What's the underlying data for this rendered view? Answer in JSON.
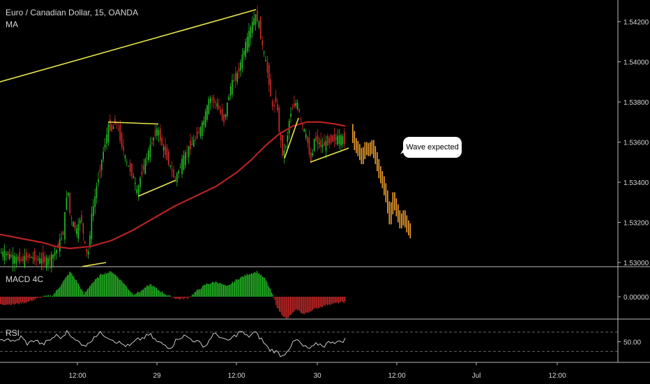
{
  "header": {
    "symbol": "Euro / Canadian Dollar, 15, OANDA",
    "indicator": "MA"
  },
  "panes": {
    "macd_label": "MACD 4C",
    "rsi_label": "RSI"
  },
  "annotation": {
    "text": "Wave expected"
  },
  "colors": {
    "background": "#000000",
    "up_candle": "#26c226",
    "down_candle": "#d42a2a",
    "ma_line": "#b52222",
    "trend_lines": "#e8e84a",
    "projection": "#f0a030",
    "rsi_line": "#dddddd",
    "grid": "#444444",
    "separator": "#bbbbbb"
  },
  "chart_data": [
    {
      "type": "candlestick",
      "pane": "price",
      "ylim": [
        1.53,
        1.5428
      ],
      "ytick_labels": [
        "1.54200",
        "1.54000",
        "1.53800",
        "1.53600",
        "1.53400",
        "1.53200",
        "1.53000"
      ],
      "ytick_values": [
        1.542,
        1.54,
        1.538,
        1.536,
        1.534,
        1.532,
        1.53
      ],
      "xtick_labels": [
        "12:00",
        "29",
        "12:00",
        "30",
        "12:00",
        "Jul",
        "12:00"
      ],
      "price_path": [
        [
          0,
          1.5305
        ],
        [
          10,
          1.5304
        ],
        [
          20,
          1.5302
        ],
        [
          30,
          1.5301
        ],
        [
          40,
          1.5303
        ],
        [
          50,
          1.5302
        ],
        [
          60,
          1.5301
        ],
        [
          70,
          1.5301
        ],
        [
          80,
          1.5306
        ],
        [
          90,
          1.5315
        ],
        [
          96,
          1.5339
        ],
        [
          100,
          1.5322
        ],
        [
          110,
          1.5315
        ],
        [
          115,
          1.5324
        ],
        [
          120,
          1.531
        ],
        [
          125,
          1.5302
        ],
        [
          130,
          1.5322
        ],
        [
          140,
          1.5342
        ],
        [
          150,
          1.536
        ],
        [
          155,
          1.5368
        ],
        [
          160,
          1.5366
        ],
        [
          165,
          1.5371
        ],
        [
          170,
          1.5364
        ],
        [
          180,
          1.535
        ],
        [
          190,
          1.5343
        ],
        [
          196,
          1.5334
        ],
        [
          200,
          1.5342
        ],
        [
          210,
          1.5353
        ],
        [
          220,
          1.5363
        ],
        [
          225,
          1.5367
        ],
        [
          230,
          1.536
        ],
        [
          240,
          1.5351
        ],
        [
          250,
          1.5341
        ],
        [
          260,
          1.535
        ],
        [
          270,
          1.5357
        ],
        [
          280,
          1.5362
        ],
        [
          290,
          1.5369
        ],
        [
          300,
          1.5382
        ],
        [
          310,
          1.5379
        ],
        [
          320,
          1.537
        ],
        [
          330,
          1.5388
        ],
        [
          340,
          1.5394
        ],
        [
          350,
          1.5407
        ],
        [
          360,
          1.5418
        ],
        [
          365,
          1.5423
        ],
        [
          370,
          1.542
        ],
        [
          375,
          1.5408
        ],
        [
          380,
          1.54
        ],
        [
          385,
          1.539
        ],
        [
          390,
          1.5376
        ],
        [
          395,
          1.5382
        ],
        [
          400,
          1.5364
        ],
        [
          405,
          1.5353
        ],
        [
          410,
          1.536
        ],
        [
          415,
          1.5374
        ],
        [
          420,
          1.5378
        ],
        [
          425,
          1.538
        ],
        [
          430,
          1.5371
        ],
        [
          435,
          1.5366
        ],
        [
          440,
          1.536
        ],
        [
          445,
          1.535
        ],
        [
          450,
          1.5362
        ],
        [
          460,
          1.5358
        ],
        [
          470,
          1.536
        ],
        [
          480,
          1.5362
        ],
        [
          490,
          1.5362
        ],
        [
          495,
          1.5359
        ]
      ],
      "moving_average": [
        [
          0,
          1.5314
        ],
        [
          30,
          1.5312
        ],
        [
          60,
          1.531
        ],
        [
          80,
          1.5308
        ],
        [
          100,
          1.5307
        ],
        [
          130,
          1.5308
        ],
        [
          160,
          1.5311
        ],
        [
          190,
          1.5316
        ],
        [
          220,
          1.5322
        ],
        [
          250,
          1.5328
        ],
        [
          280,
          1.5333
        ],
        [
          310,
          1.5338
        ],
        [
          340,
          1.5345
        ],
        [
          360,
          1.5351
        ],
        [
          380,
          1.5358
        ],
        [
          400,
          1.5364
        ],
        [
          420,
          1.5368
        ],
        [
          440,
          1.537
        ],
        [
          460,
          1.537
        ],
        [
          480,
          1.5369
        ],
        [
          495,
          1.5368
        ]
      ],
      "trend_lines": [
        [
          [
            0,
            1.539
          ],
          [
            367,
            1.5426
          ]
        ],
        [
          [
            155,
            1.537
          ],
          [
            227,
            1.5369
          ]
        ],
        [
          [
            198,
            1.5333
          ],
          [
            252,
            1.5341
          ]
        ],
        [
          [
            408,
            1.5352
          ],
          [
            428,
            1.5372
          ]
        ],
        [
          [
            445,
            1.535
          ],
          [
            500,
            1.5357
          ]
        ],
        [
          [
            118,
            1.5298
          ],
          [
            152,
            1.53
          ]
        ]
      ],
      "projection": [
        [
          505,
          1.5366
        ],
        [
          510,
          1.5359
        ],
        [
          515,
          1.5356
        ],
        [
          520,
          1.5352
        ],
        [
          525,
          1.5357
        ],
        [
          530,
          1.5356
        ],
        [
          535,
          1.5358
        ],
        [
          540,
          1.5352
        ],
        [
          545,
          1.5345
        ],
        [
          550,
          1.534
        ],
        [
          555,
          1.5333
        ],
        [
          560,
          1.5322
        ],
        [
          565,
          1.5332
        ],
        [
          570,
          1.5326
        ],
        [
          575,
          1.532
        ],
        [
          580,
          1.5323
        ],
        [
          585,
          1.5318
        ],
        [
          590,
          1.5315
        ]
      ]
    },
    {
      "type": "histogram",
      "pane": "macd",
      "ytick_labels": [
        "0.00000"
      ],
      "ytick_values": [
        0
      ],
      "values": [
        [
          0,
          -0.3
        ],
        [
          20,
          -0.3
        ],
        [
          40,
          -0.2
        ],
        [
          60,
          0
        ],
        [
          75,
          0.05
        ],
        [
          85,
          0.4
        ],
        [
          100,
          1.0
        ],
        [
          110,
          0.6
        ],
        [
          120,
          0.1
        ],
        [
          130,
          0.5
        ],
        [
          145,
          0.9
        ],
        [
          160,
          1.0
        ],
        [
          175,
          0.6
        ],
        [
          190,
          0.1
        ],
        [
          200,
          0.2
        ],
        [
          215,
          0.5
        ],
        [
          225,
          0.3
        ],
        [
          240,
          0.05
        ],
        [
          255,
          -0.1
        ],
        [
          270,
          -0.05
        ],
        [
          280,
          0.2
        ],
        [
          295,
          0.5
        ],
        [
          310,
          0.6
        ],
        [
          325,
          0.4
        ],
        [
          340,
          0.7
        ],
        [
          355,
          0.9
        ],
        [
          368,
          1.0
        ],
        [
          380,
          0.7
        ],
        [
          390,
          0.1
        ],
        [
          398,
          -0.5
        ],
        [
          410,
          -0.9
        ],
        [
          425,
          -0.5
        ],
        [
          435,
          -0.7
        ],
        [
          450,
          -0.5
        ],
        [
          470,
          -0.3
        ],
        [
          495,
          -0.2
        ]
      ]
    },
    {
      "type": "line",
      "pane": "rsi",
      "ytick_labels": [
        "50.00"
      ],
      "ytick_values": [
        50
      ],
      "ylim": [
        10,
        90
      ],
      "series": [
        {
          "values": [
            [
              0,
              50
            ],
            [
              10,
              58
            ],
            [
              20,
              48
            ],
            [
              30,
              60
            ],
            [
              40,
              45
            ],
            [
              50,
              55
            ],
            [
              60,
              44
            ],
            [
              70,
              52
            ],
            [
              80,
              63
            ],
            [
              90,
              58
            ],
            [
              97,
              76
            ],
            [
              105,
              55
            ],
            [
              115,
              48
            ],
            [
              125,
              42
            ],
            [
              135,
              62
            ],
            [
              145,
              68
            ],
            [
              155,
              60
            ],
            [
              165,
              52
            ],
            [
              175,
              45
            ],
            [
              185,
              40
            ],
            [
              195,
              52
            ],
            [
              205,
              58
            ],
            [
              215,
              65
            ],
            [
              225,
              50
            ],
            [
              235,
              44
            ],
            [
              245,
              38
            ],
            [
              255,
              58
            ],
            [
              265,
              62
            ],
            [
              275,
              55
            ],
            [
              285,
              48
            ],
            [
              295,
              40
            ],
            [
              305,
              66
            ],
            [
              315,
              62
            ],
            [
              325,
              50
            ],
            [
              335,
              60
            ],
            [
              345,
              72
            ],
            [
              355,
              60
            ],
            [
              365,
              70
            ],
            [
              375,
              55
            ],
            [
              385,
              35
            ],
            [
              395,
              30
            ],
            [
              405,
              20
            ],
            [
              415,
              38
            ],
            [
              425,
              55
            ],
            [
              435,
              40
            ],
            [
              445,
              35
            ],
            [
              455,
              46
            ],
            [
              465,
              42
            ],
            [
              475,
              52
            ],
            [
              485,
              48
            ],
            [
              495,
              55
            ]
          ]
        }
      ],
      "dashed_levels": [
        70,
        30
      ]
    }
  ]
}
